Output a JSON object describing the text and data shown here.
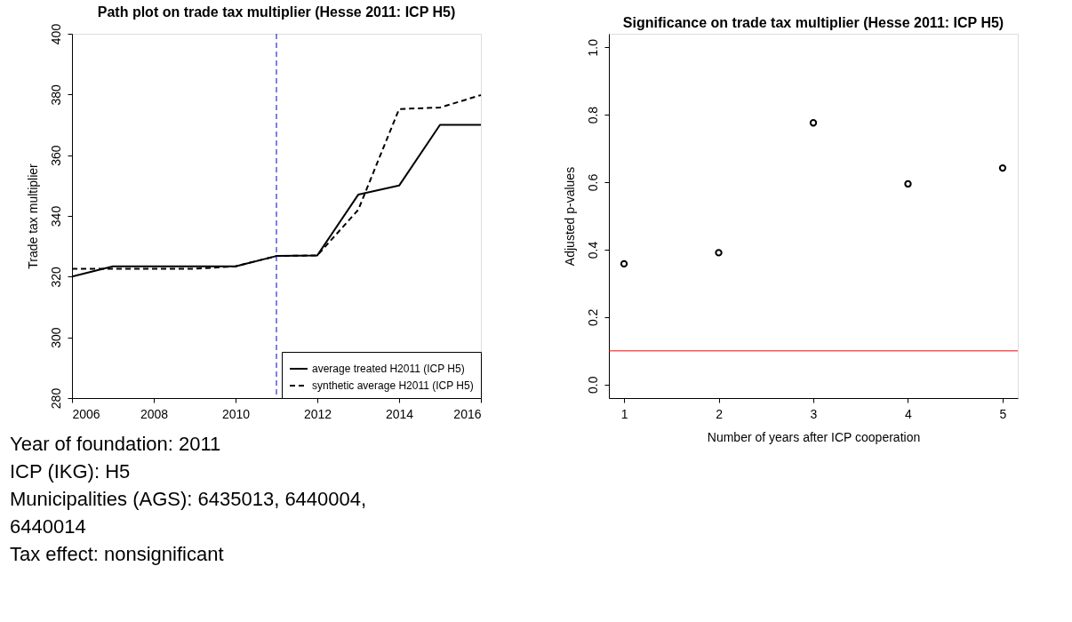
{
  "chart_data": [
    {
      "type": "line",
      "title": "Path plot on trade tax multiplier (Hesse 2011: ICP H5)",
      "ylabel": "Trade tax multiplier",
      "x": [
        2006,
        2007,
        2008,
        2009,
        2010,
        2011,
        2012,
        2013,
        2014,
        2015,
        2016
      ],
      "series": [
        {
          "name": "average treated H2011 (ICP H5)",
          "color": "#000000",
          "line_style": "solid",
          "values": [
            320,
            323.4,
            323.4,
            323.4,
            323.4,
            326.8,
            327,
            347,
            350,
            370,
            370
          ]
        },
        {
          "name": "synthetic average H2011 (ICP H5)",
          "color": "#000000",
          "line_style": "dashed",
          "values": [
            322.6,
            322.6,
            322.6,
            322.6,
            323.4,
            326.8,
            327,
            342,
            375.2,
            375.7,
            379.8
          ]
        }
      ],
      "xlim": [
        2006,
        2016
      ],
      "ylim": [
        280,
        400
      ],
      "xticks": [
        2006,
        2008,
        2010,
        2012,
        2014,
        2016
      ],
      "yticks": [
        280,
        300,
        320,
        340,
        360,
        380,
        400
      ],
      "ref_lines": [
        {
          "axis": "x",
          "value": 2011,
          "color": "#0000cc",
          "line_style": "dashed"
        }
      ],
      "legend": "bottom right",
      "grid": false,
      "annotations": [
        "Year of foundation: 2011",
        "ICP (IKG): H5",
        "Municipalities (AGS): 6435013, 6440004,",
        "6440014",
        "Tax effect: nonsignificant"
      ]
    },
    {
      "type": "scatter",
      "title": "Significance on trade tax multiplier (Hesse 2011: ICP H5)",
      "xlabel": "Number of  years after ICP cooperation",
      "ylabel": "Adjusted p-values",
      "x": [
        1,
        2,
        3,
        4,
        5
      ],
      "series": [
        {
          "color": "#000000",
          "values": [
            0.358,
            0.391,
            0.776,
            0.595,
            0.642
          ]
        }
      ],
      "xlim": [
        0.84,
        5.16
      ],
      "ylim": [
        -0.04,
        1.04
      ],
      "xticks": [
        1,
        2,
        3,
        4,
        5
      ],
      "yticks": [
        {
          "value": 0,
          "label": "0.0"
        },
        0.2,
        0.4,
        0.6,
        0.8,
        {
          "value": 1,
          "label": "1.0"
        }
      ],
      "ref_lines": [
        {
          "axis": "y",
          "value": 0.1,
          "color": "#ff0000"
        }
      ],
      "marker": "circle",
      "grid": false
    }
  ]
}
